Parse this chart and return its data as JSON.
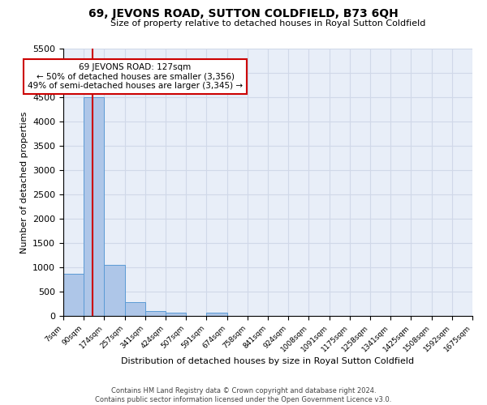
{
  "title": "69, JEVONS ROAD, SUTTON COLDFIELD, B73 6QH",
  "subtitle": "Size of property relative to detached houses in Royal Sutton Coldfield",
  "xlabel": "Distribution of detached houses by size in Royal Sutton Coldfield",
  "ylabel": "Number of detached properties",
  "footer_line1": "Contains HM Land Registry data © Crown copyright and database right 2024.",
  "footer_line2": "Contains public sector information licensed under the Open Government Licence v3.0.",
  "annotation_line1": "69 JEVONS ROAD: 127sqm",
  "annotation_line2": "← 50% of detached houses are smaller (3,356)",
  "annotation_line3": "49% of semi-detached houses are larger (3,345) →",
  "property_size": 127,
  "bar_color": "#aec6e8",
  "bar_edge_color": "#5b9bd5",
  "vline_color": "#cc0000",
  "annotation_box_color": "#cc0000",
  "grid_color": "#d0d8e8",
  "background_color": "#e8eef8",
  "bin_edges": [
    7,
    90,
    174,
    257,
    341,
    424,
    507,
    591,
    674,
    758,
    841,
    924,
    1008,
    1091,
    1175,
    1258,
    1341,
    1425,
    1508,
    1592,
    1675
  ],
  "bin_counts": [
    870,
    4500,
    1050,
    290,
    95,
    60,
    0,
    60,
    0,
    0,
    0,
    0,
    0,
    0,
    0,
    0,
    0,
    0,
    0,
    0
  ],
  "ylim": [
    0,
    5500
  ],
  "yticks": [
    0,
    500,
    1000,
    1500,
    2000,
    2500,
    3000,
    3500,
    4000,
    4500,
    5000,
    5500
  ]
}
